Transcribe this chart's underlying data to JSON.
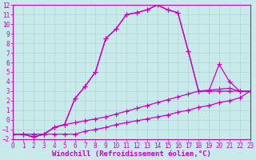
{
  "background_color": "#c8eaea",
  "grid_color": "#b0d4d4",
  "line_color": "#cc00cc",
  "xlabel": "Windchill (Refroidissement éolien,°C)",
  "xlim": [
    0,
    23
  ],
  "ylim": [
    -2,
    12
  ],
  "xticks": [
    0,
    1,
    2,
    3,
    4,
    5,
    6,
    7,
    8,
    9,
    10,
    11,
    12,
    13,
    14,
    15,
    16,
    17,
    18,
    19,
    20,
    21,
    22,
    23
  ],
  "yticks": [
    -2,
    -1,
    0,
    1,
    2,
    3,
    4,
    5,
    6,
    7,
    8,
    9,
    10,
    11,
    12
  ],
  "line1_x": [
    0,
    1,
    2,
    3,
    4,
    5,
    6,
    7,
    8,
    9,
    10,
    11,
    12,
    13,
    14,
    15,
    16,
    17,
    18,
    19,
    20,
    21,
    22,
    23
  ],
  "line1_y": [
    -1.5,
    -1.5,
    -1.8,
    -1.5,
    -0.8,
    -0.5,
    2.2,
    3.5,
    5.0,
    8.5,
    9.5,
    11.0,
    11.2,
    11.5,
    12.0,
    11.5,
    11.2,
    7.2,
    3.0,
    3.0,
    3.0,
    3.0,
    3.0,
    3.0
  ],
  "line2_x": [
    0,
    1,
    2,
    3,
    4,
    5,
    6,
    7,
    8,
    9,
    10,
    11,
    12,
    13,
    14,
    15,
    16,
    17,
    18,
    19,
    20,
    21,
    22,
    23
  ],
  "line2_y": [
    -1.5,
    -1.5,
    -1.8,
    -1.5,
    -0.8,
    -0.5,
    2.2,
    3.5,
    5.0,
    8.5,
    9.5,
    11.0,
    11.2,
    11.5,
    12.0,
    11.5,
    11.2,
    7.2,
    3.0,
    3.0,
    5.8,
    4.0,
    3.0,
    3.0
  ],
  "line3_x": [
    0,
    1,
    2,
    3,
    4,
    5,
    6,
    7,
    8,
    9,
    10,
    11,
    12,
    13,
    14,
    15,
    16,
    17,
    18,
    19,
    20,
    21,
    22,
    23
  ],
  "line3_y": [
    -1.5,
    -1.5,
    -1.5,
    -1.5,
    -1.5,
    -1.5,
    -1.5,
    -1.2,
    -1.0,
    -0.8,
    -0.5,
    -0.3,
    -0.1,
    0.1,
    0.3,
    0.5,
    0.8,
    1.0,
    1.3,
    1.5,
    1.8,
    2.0,
    2.3,
    3.0
  ],
  "line4_x": [
    0,
    1,
    2,
    3,
    4,
    5,
    6,
    7,
    8,
    9,
    10,
    11,
    12,
    13,
    14,
    15,
    16,
    17,
    18,
    19,
    20,
    21,
    22,
    23
  ],
  "line4_y": [
    -1.5,
    -1.5,
    -1.8,
    -1.5,
    -0.8,
    -0.5,
    -0.3,
    -0.1,
    0.1,
    0.3,
    0.6,
    0.9,
    1.2,
    1.5,
    1.8,
    2.1,
    2.4,
    2.7,
    3.0,
    3.1,
    3.2,
    3.3,
    3.0,
    3.0
  ],
  "marker": "+",
  "marker_size": 4,
  "linewidth": 0.9,
  "tick_fontsize": 5.5,
  "xlabel_fontsize": 6.5
}
